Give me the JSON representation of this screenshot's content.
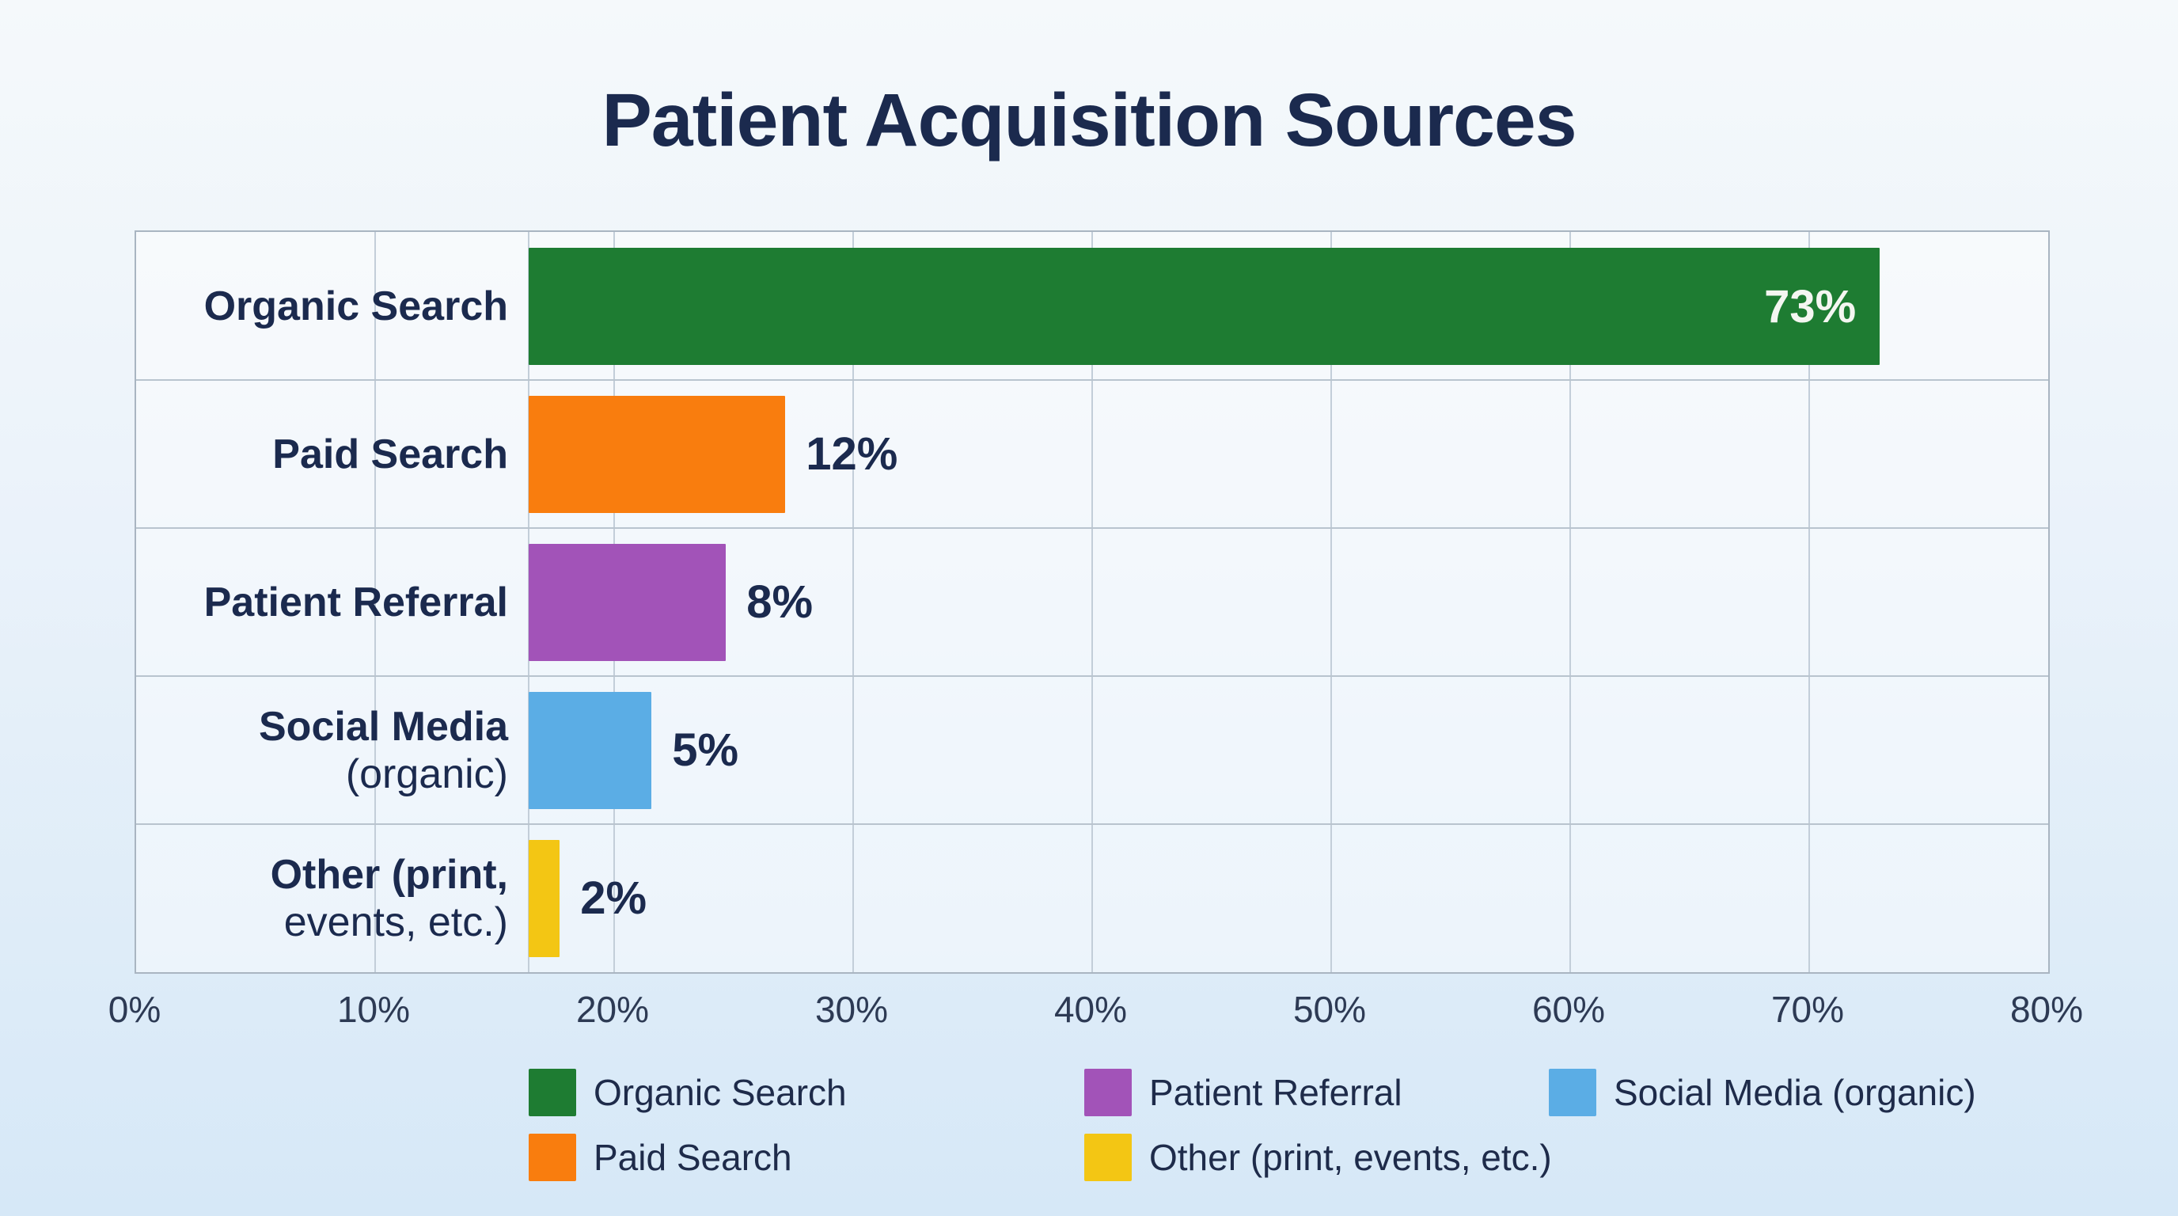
{
  "title": "Patient Acquisition Sources",
  "chart_data": {
    "type": "bar",
    "orientation": "horizontal",
    "title": "Patient Acquisition Sources",
    "categories": [
      "Organic Search",
      "Paid Search",
      "Patient Referral",
      "Social Media (organic)",
      "Other (print, events, etc.)"
    ],
    "values": [
      73,
      12,
      8,
      5,
      2
    ],
    "value_labels": [
      "73%",
      "12%",
      "8%",
      "5%",
      "2%"
    ],
    "unit": "percent",
    "xlim": [
      0,
      80
    ],
    "x_ticks": [
      "0%",
      "10%",
      "20%",
      "30%",
      "40%",
      "50%",
      "60%",
      "70%",
      "80%"
    ],
    "grid": true,
    "bar_colors": [
      "#1e7c32",
      "#f97d0e",
      "#a253b8",
      "#5bade5",
      "#f3c614"
    ],
    "legend": {
      "position": "bottom",
      "entries": [
        {
          "label": "Organic Search",
          "color": "#1e7c32"
        },
        {
          "label": "Patient Referral",
          "color": "#a253b8"
        },
        {
          "label": "Social Media (organic)",
          "color": "#5bade5"
        },
        {
          "label": "Paid Search",
          "color": "#f97d0e"
        },
        {
          "label": "Other (print, events, etc.)",
          "color": "#f3c614"
        }
      ]
    }
  },
  "colors": {
    "navy_text": "#1b2a4e",
    "tick_text": "#2d3a54",
    "inside_value_text": "#f4f6f1",
    "plot_border": "#a9b5c1",
    "gridline": "#c3ced9",
    "background_top": "#f5f9fb",
    "background_bottom": "#d6e8f7"
  },
  "render": {
    "bar_start_pct": 20.54,
    "tick_pct": [
      0,
      12.5,
      25,
      37.5,
      50,
      62.5,
      75,
      87.5,
      100
    ],
    "rows": [
      {
        "id": "organic-search",
        "label_bold": "Organic Search",
        "label_regular": "",
        "value_label": "73%",
        "color": "#1e7c32",
        "bar_width_pct": 70.66,
        "value_inside": true
      },
      {
        "id": "paid-search",
        "label_bold": "Paid Search",
        "label_regular": "",
        "value_label": "12%",
        "color": "#f97d0e",
        "bar_width_pct": 13.43,
        "value_inside": false
      },
      {
        "id": "patient-referral",
        "label_bold": "Patient Referral",
        "label_regular": "",
        "value_label": "8%",
        "color": "#a253b8",
        "bar_width_pct": 10.29,
        "value_inside": false
      },
      {
        "id": "social-media",
        "label_bold": "Social Media",
        "label_regular": "(organic)",
        "value_label": "5%",
        "color": "#5bade5",
        "bar_width_pct": 6.4,
        "value_inside": false
      },
      {
        "id": "other",
        "label_bold": "Other (print,",
        "label_regular": "events, etc.)",
        "value_label": "2%",
        "color": "#f3c614",
        "bar_width_pct": 1.61,
        "value_inside": false
      }
    ]
  }
}
